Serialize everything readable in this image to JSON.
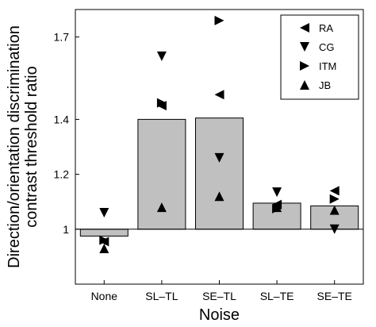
{
  "chart_data": {
    "type": "bar",
    "categories": [
      "None",
      "SL–TL",
      "SE–TL",
      "SL–TE",
      "SE–TE"
    ],
    "values": [
      0.975,
      1.4,
      1.405,
      1.095,
      1.085
    ],
    "xlabel": "Noise",
    "ylabel_lines": [
      "Direction/orientation discrimination",
      "contrast threshold ratio"
    ],
    "ylim": [
      0.8,
      1.8
    ],
    "yticks": [
      1.0,
      1.2,
      1.4,
      1.7
    ],
    "ytick_labels": [
      "1",
      "1.2",
      "1.4",
      "1.7"
    ],
    "reference_line": 1.0,
    "bar_color": "#c0c0c0",
    "legend": {
      "position": "top-right",
      "entries": [
        "RA",
        "CG",
        "ITM",
        "JB"
      ]
    },
    "series": [
      {
        "name": "RA",
        "marker": "triangle-left",
        "values": [
          0.955,
          1.45,
          1.49,
          1.09,
          1.14
        ]
      },
      {
        "name": "CG",
        "marker": "triangle-down",
        "values": [
          1.06,
          1.63,
          1.26,
          1.135,
          1.0
        ]
      },
      {
        "name": "ITM",
        "marker": "triangle-right",
        "values": [
          0.96,
          1.46,
          1.76,
          1.075,
          1.11
        ]
      },
      {
        "name": "JB",
        "marker": "triangle-up",
        "values": [
          0.93,
          1.08,
          1.12,
          1.08,
          1.07
        ]
      }
    ]
  }
}
